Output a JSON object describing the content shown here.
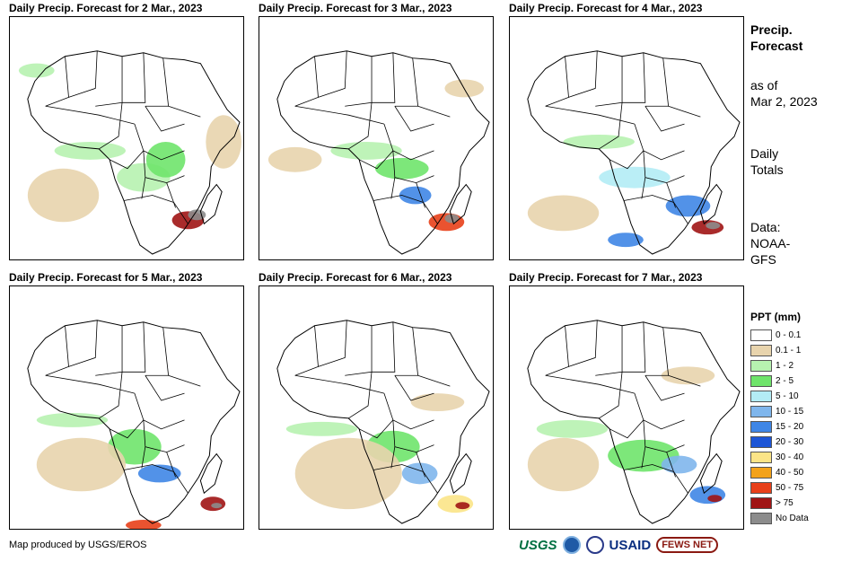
{
  "panels": [
    {
      "title": "Daily Precip. Forecast for 2 Mar., 2023"
    },
    {
      "title": "Daily Precip. Forecast for 3 Mar., 2023"
    },
    {
      "title": "Daily Precip. Forecast for 4 Mar., 2023"
    },
    {
      "title": "Daily Precip. Forecast for 5 Mar., 2023"
    },
    {
      "title": "Daily Precip. Forecast for 6 Mar., 2023"
    },
    {
      "title": "Daily Precip. Forecast for 7 Mar., 2023"
    }
  ],
  "side": {
    "title_line1": "Precip.",
    "title_line2": "Forecast",
    "asof_line1": "as of",
    "asof_line2": "Mar 2, 2023",
    "daily_line1": "Daily",
    "daily_line2": "Totals",
    "data_line1": "Data:",
    "data_line2": "NOAA-",
    "data_line3": "GFS"
  },
  "legend": {
    "title": "PPT (mm)",
    "items": [
      {
        "label": "0 - 0.1",
        "color": "#ffffff"
      },
      {
        "label": "0.1 - 1",
        "color": "#e8d4ad"
      },
      {
        "label": "1 - 2",
        "color": "#b7f2b0"
      },
      {
        "label": "2 - 5",
        "color": "#6fe46b"
      },
      {
        "label": "5 - 10",
        "color": "#b3ecf5"
      },
      {
        "label": "10 - 15",
        "color": "#7fb6ec"
      },
      {
        "label": "15 - 20",
        "color": "#3f86e6"
      },
      {
        "label": "20 - 30",
        "color": "#1c55d6"
      },
      {
        "label": "30 - 40",
        "color": "#fbe487"
      },
      {
        "label": "40 - 50",
        "color": "#f3a21a"
      },
      {
        "label": "50 - 75",
        "color": "#e8401a"
      },
      {
        "label": "> 75",
        "color": "#a01414"
      },
      {
        "label": "No Data",
        "color": "#8c8c8c"
      }
    ]
  },
  "footer": "Map produced by USGS/EROS",
  "logos": {
    "usgs": "USGS",
    "usaid": "USAID",
    "fews": "FEWS NET"
  }
}
